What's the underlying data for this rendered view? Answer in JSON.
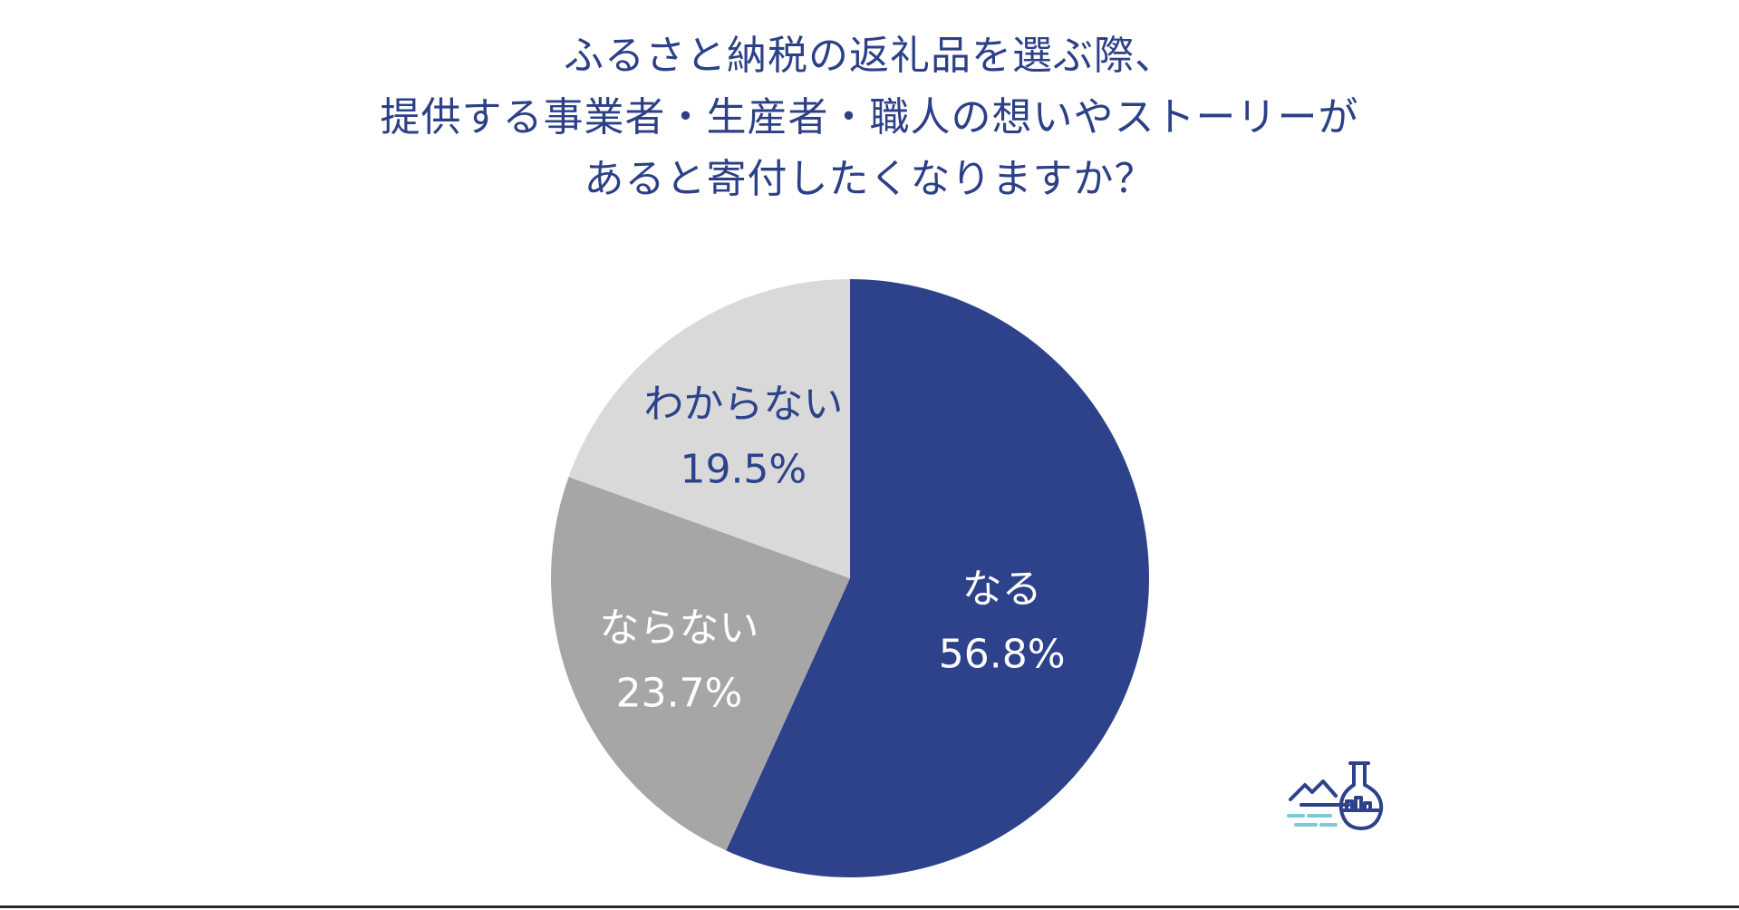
{
  "title_lines": [
    "ふるさと納税の返礼品を選ぶ際、",
    "提供する事業者・生産者・職人の想いやストーリーが",
    "あると寄付したくなりますか？"
  ],
  "chart_data": {
    "type": "pie",
    "title": "ふるさと納税の返礼品を選ぶ際、提供する事業者・生産者・職人の想いやストーリーがあると寄付したくなりますか？",
    "start_angle": "12 o'clock",
    "direction": "clockwise",
    "slices": [
      {
        "label": "なる",
        "value": 56.8,
        "value_label": "56.8%",
        "color": "#2d428b",
        "text_color": "#ffffff"
      },
      {
        "label": "ならない",
        "value": 23.7,
        "value_label": "23.7%",
        "color": "#a6a6a6",
        "text_color": "#ffffff"
      },
      {
        "label": "わからない",
        "value": 19.5,
        "value_label": "19.5%",
        "color": "#d9d9d9",
        "text_color": "#2d428b"
      }
    ]
  },
  "colors": {
    "title": "#2c4088",
    "logo_primary": "#2d428b",
    "logo_accent": "#7ec8d8"
  },
  "logo": {
    "icon": "mountain-flask-logo-icon"
  }
}
